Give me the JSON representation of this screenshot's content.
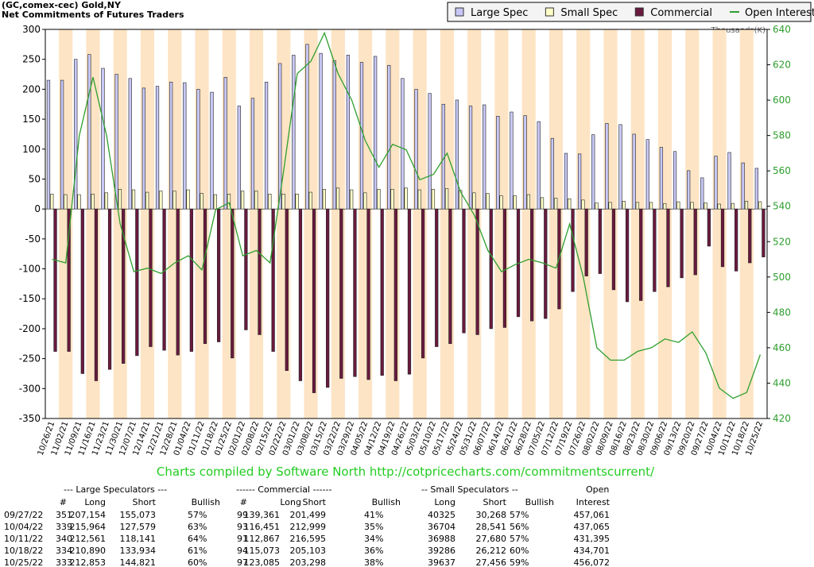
{
  "chart_data": {
    "type": "bar",
    "title": "(GC,comex-cec) Gold,NY",
    "subtitle": "Net Commitments of Futures Traders",
    "y2_axis_label": "Thousands(K)",
    "footer": "Charts compiled by Software North  http://cotpricecharts.com/commitmentscurrent/",
    "categories": [
      "10/26/21",
      "11/02/21",
      "11/09/21",
      "11/16/21",
      "11/23/21",
      "11/30/21",
      "12/07/21",
      "12/14/21",
      "12/21/21",
      "12/28/21",
      "01/04/22",
      "01/11/22",
      "01/18/22",
      "01/25/22",
      "02/01/22",
      "02/08/22",
      "02/15/22",
      "02/22/22",
      "03/01/22",
      "03/08/22",
      "03/15/22",
      "03/22/22",
      "03/29/22",
      "04/05/22",
      "04/12/22",
      "04/19/22",
      "04/26/22",
      "05/03/22",
      "05/10/22",
      "05/17/22",
      "05/24/22",
      "05/31/22",
      "06/07/22",
      "06/14/22",
      "06/21/22",
      "06/28/22",
      "07/05/22",
      "07/12/22",
      "07/19/22",
      "07/26/22",
      "08/02/22",
      "08/09/22",
      "08/16/22",
      "08/23/22",
      "08/30/22",
      "09/06/22",
      "09/13/22",
      "09/20/22",
      "09/27/22",
      "10/04/22",
      "10/11/22",
      "10/18/22",
      "10/25/22"
    ],
    "series": [
      {
        "name": "Large Spec",
        "type": "bar",
        "color": "#c8c8f8",
        "values": [
          215,
          215,
          250,
          258,
          235,
          225,
          218,
          202,
          205,
          212,
          211,
          200,
          195,
          220,
          172,
          185,
          212,
          243,
          257,
          275,
          260,
          248,
          257,
          245,
          255,
          240,
          218,
          200,
          193,
          175,
          182,
          172,
          174,
          155,
          162,
          156,
          146,
          118,
          93,
          92,
          124,
          143,
          141,
          125,
          116,
          103,
          96,
          64,
          52.1,
          88.4,
          94.4,
          77.0,
          68.0
        ]
      },
      {
        "name": "Small Spec",
        "type": "bar",
        "color": "#ffffc8",
        "values": [
          25,
          24,
          24,
          25,
          27,
          33,
          32,
          28,
          30,
          30,
          32,
          26,
          24,
          25,
          30,
          30,
          25,
          25,
          25,
          28,
          33,
          35,
          32,
          27,
          33,
          33,
          35,
          32,
          33,
          34,
          31,
          27,
          26,
          22,
          22,
          24,
          19,
          18,
          17,
          15,
          10,
          11,
          13,
          11,
          11,
          9,
          12,
          11,
          10.1,
          8.2,
          9.3,
          13.1,
          12.2
        ]
      },
      {
        "name": "Commercial",
        "type": "bar",
        "color": "#6a1a3e",
        "values": [
          -238,
          -238,
          -275,
          -287,
          -268,
          -258,
          -245,
          -230,
          -236,
          -244,
          -238,
          -225,
          -222,
          -249,
          -202,
          -210,
          -238,
          -270,
          -287,
          -307,
          -298,
          -283,
          -280,
          -285,
          -278,
          -287,
          -276,
          -249,
          -230,
          -225,
          -207,
          -210,
          -200,
          -198,
          -180,
          -187,
          -183,
          -167,
          -138,
          -112,
          -108,
          -135,
          -155,
          -153,
          -138,
          -130,
          -115,
          -110,
          -62.1,
          -96.5,
          -103.7,
          -90.0,
          -80.2
        ]
      },
      {
        "name": "Open Interest",
        "type": "line",
        "axis": "y2",
        "color": "#2e9e2e",
        "values": [
          510,
          508,
          580,
          613,
          580,
          530,
          503,
          505,
          502,
          508,
          512,
          504,
          538,
          542,
          512,
          515,
          508,
          560,
          615,
          622,
          638,
          615,
          600,
          577,
          562,
          575,
          572,
          555,
          558,
          570,
          548,
          535,
          515,
          503,
          507,
          510,
          508,
          505,
          530,
          500,
          460,
          453,
          453,
          458,
          460,
          465,
          463,
          469,
          457.1,
          437.1,
          431.4,
          434.7,
          456.1
        ]
      }
    ],
    "ylim": [
      -350,
      300
    ],
    "yticks": [
      -350,
      -300,
      -250,
      -200,
      -150,
      -100,
      -50,
      0,
      50,
      100,
      150,
      200,
      250,
      300
    ],
    "y2lim": [
      420,
      640
    ],
    "y2ticks": [
      420,
      440,
      460,
      480,
      500,
      520,
      540,
      560,
      580,
      600,
      620,
      640
    ],
    "stripe_color": "#fde4c4",
    "legend": "top-right"
  },
  "table": {
    "groups": [
      "--- Large Speculators ---",
      "------ Commercial ------",
      "-- Small Speculators --",
      "Open"
    ],
    "columns": [
      "#",
      "Long",
      "Short",
      "Bullish",
      "#",
      "Long",
      "Short",
      "Bullish",
      "Long",
      "Short",
      "Bullish",
      "Interest"
    ],
    "rows": [
      [
        "09/27/22",
        "351",
        "207,154",
        "155,073",
        "57%",
        "99",
        "139,361",
        "201,499",
        "41%",
        "40325",
        "30,268",
        "57%",
        "457,061"
      ],
      [
        "10/04/22",
        "339",
        "215,964",
        "127,579",
        "63%",
        "93",
        "116,451",
        "212,999",
        "35%",
        "36704",
        "28,541",
        "56%",
        "437,065"
      ],
      [
        "10/11/22",
        "340",
        "212,561",
        "118,141",
        "64%",
        "91",
        "112,867",
        "216,595",
        "34%",
        "36988",
        "27,680",
        "57%",
        "431,395"
      ],
      [
        "10/18/22",
        "334",
        "210,890",
        "133,934",
        "61%",
        "94",
        "115,073",
        "205,103",
        "36%",
        "39286",
        "26,212",
        "60%",
        "434,701"
      ],
      [
        "10/25/22",
        "333",
        "212,853",
        "144,821",
        "60%",
        "97",
        "123,085",
        "203,298",
        "38%",
        "39637",
        "27,456",
        "59%",
        "456,072"
      ]
    ]
  }
}
